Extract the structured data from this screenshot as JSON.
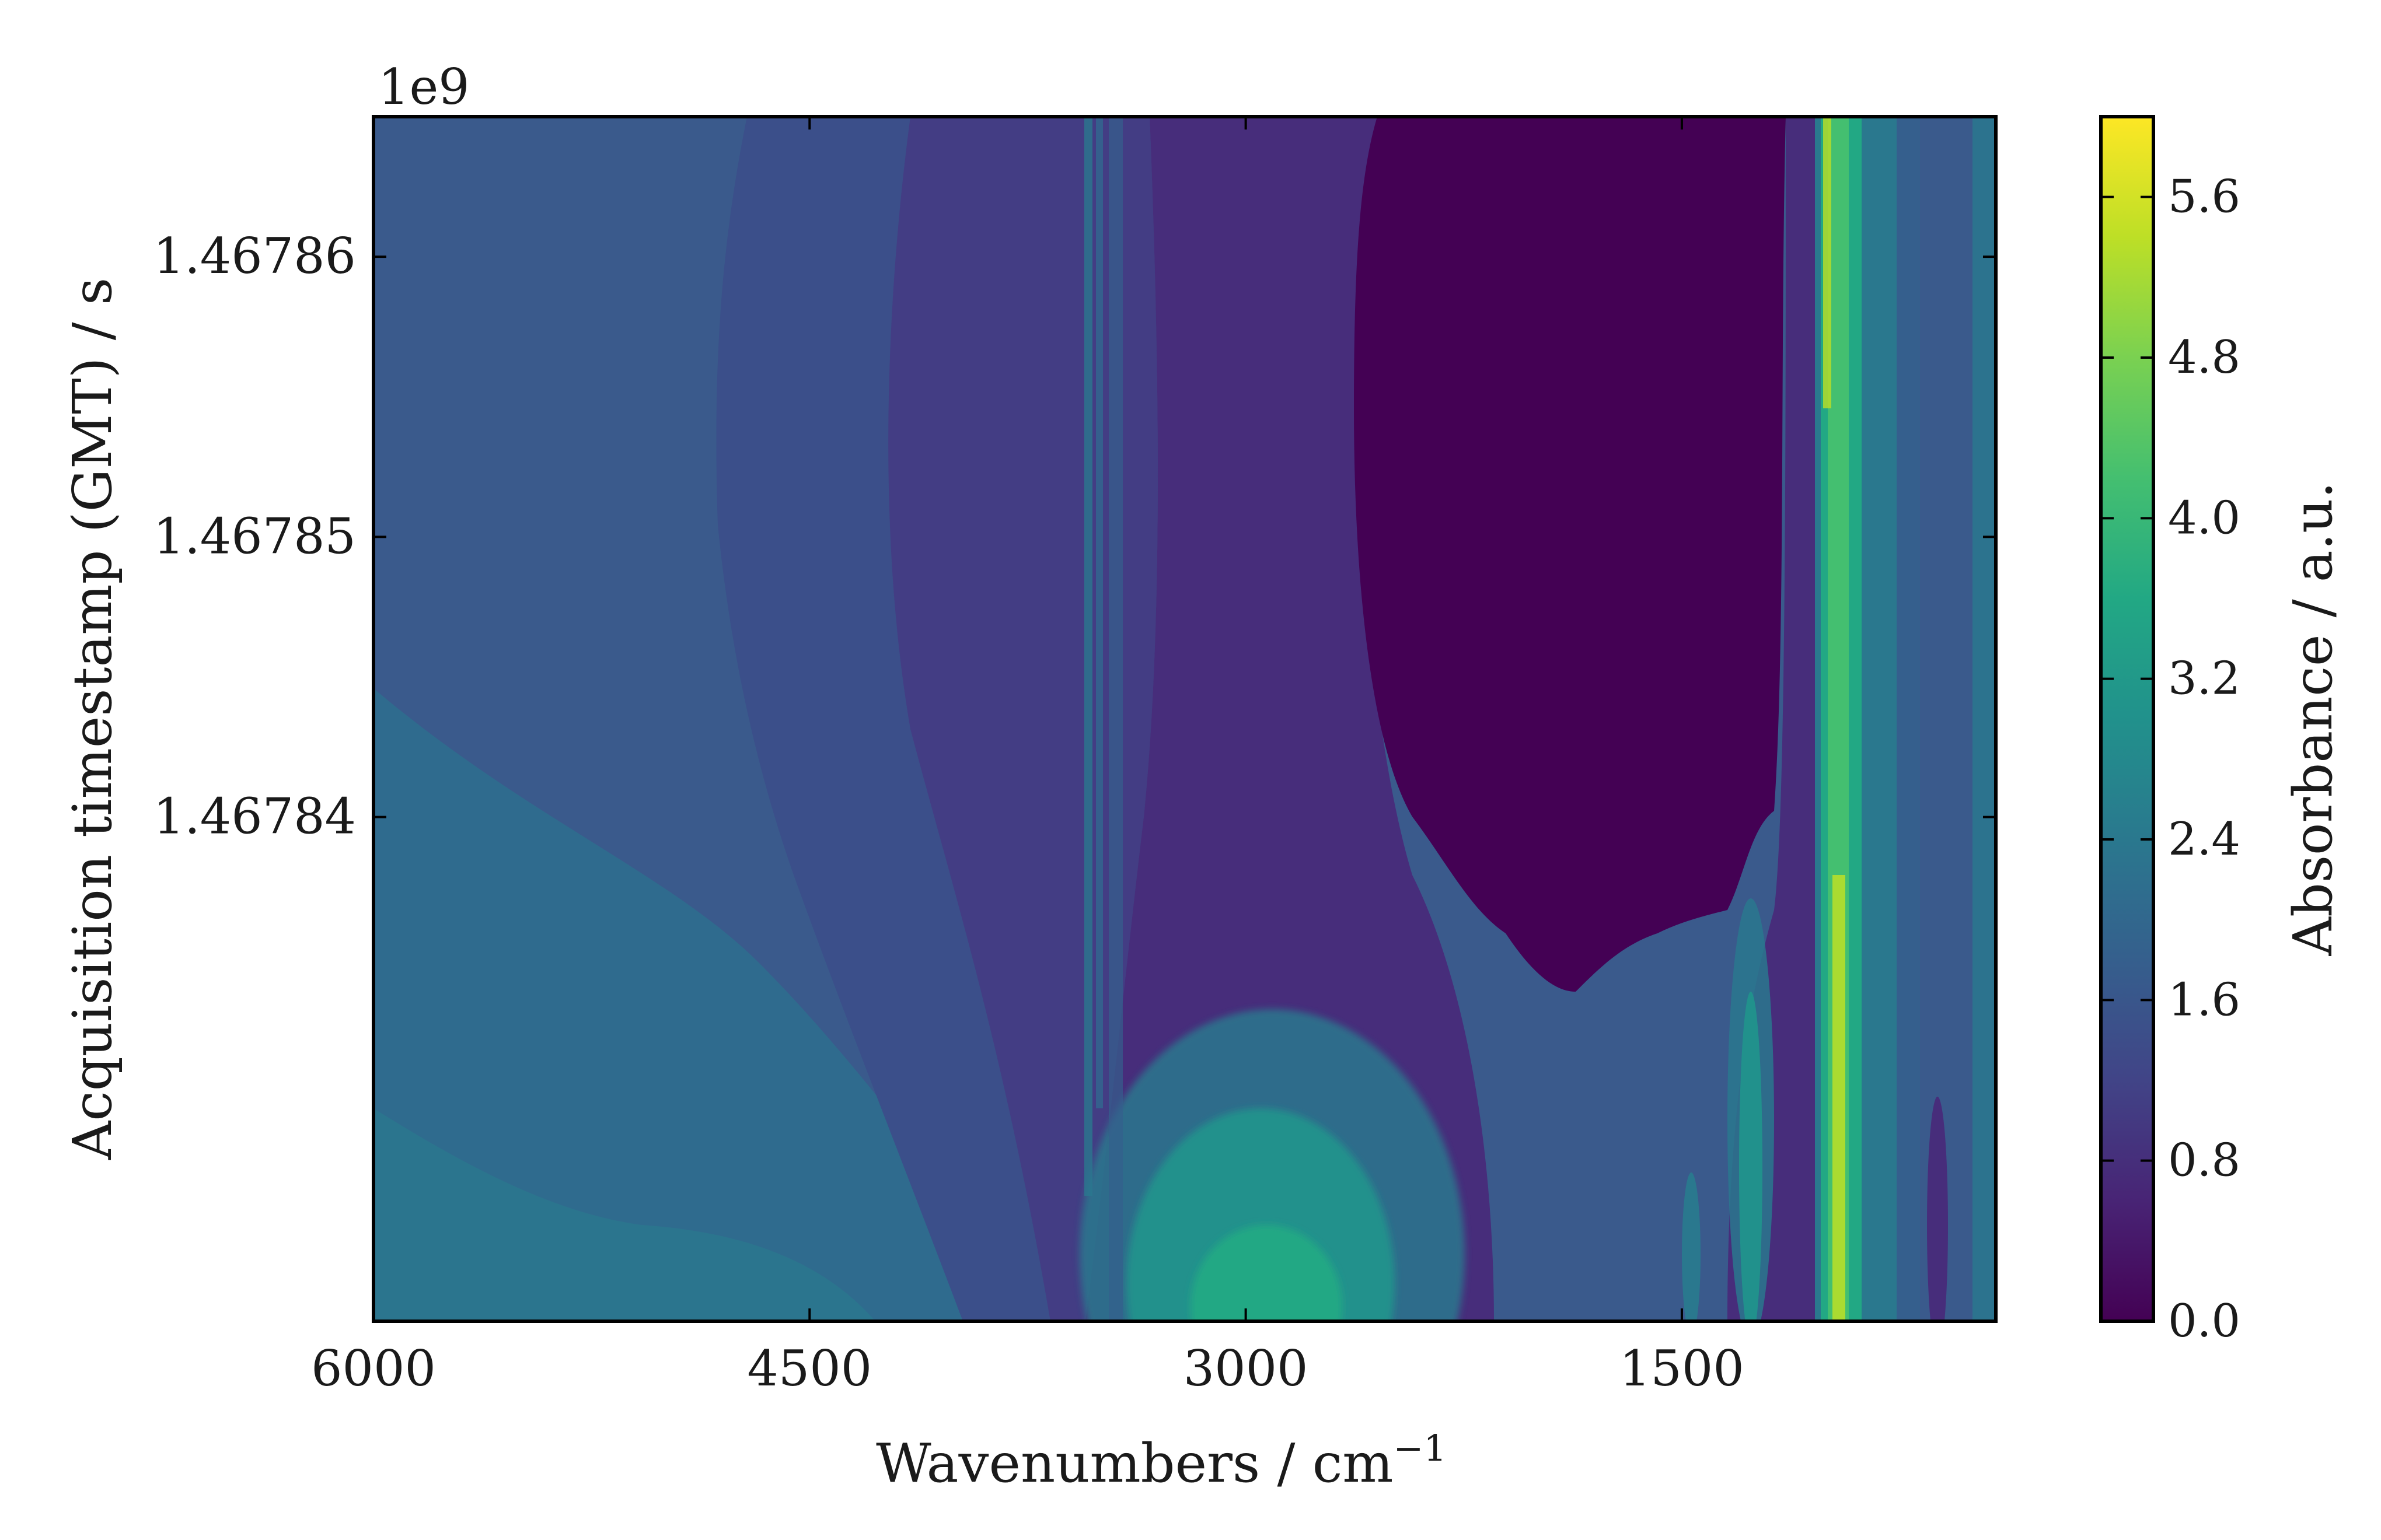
{
  "chart_data": {
    "type": "heatmap",
    "title": "",
    "xlabel": "Wavenumbers / cm",
    "xlabel_superscript": "−1",
    "ylabel": "Acquisition timestamp (GMT) / s",
    "y_offset_text": "1e9",
    "colorbar_label": "Absorbance / a.u.",
    "colormap": "viridis",
    "x_reversed": true,
    "xlim": [
      6000,
      420
    ],
    "ylim": [
      1.467822,
      1.467865
    ],
    "clim": [
      0.0,
      6.0
    ],
    "x_ticks": [
      {
        "value": 6000,
        "label": "6000"
      },
      {
        "value": 4500,
        "label": "4500"
      },
      {
        "value": 3000,
        "label": "3000"
      },
      {
        "value": 1500,
        "label": "1500"
      }
    ],
    "y_ticks": [
      {
        "value": 1.46786,
        "label": "1.46786"
      },
      {
        "value": 1.46785,
        "label": "1.46785"
      },
      {
        "value": 1.46784,
        "label": "1.46784"
      }
    ],
    "colorbar_ticks": [
      {
        "value": 0.0,
        "label": "0.0"
      },
      {
        "value": 0.8,
        "label": "0.8"
      },
      {
        "value": 1.6,
        "label": "1.6"
      },
      {
        "value": 2.4,
        "label": "2.4"
      },
      {
        "value": 3.2,
        "label": "3.2"
      },
      {
        "value": 4.0,
        "label": "4.0"
      },
      {
        "value": 4.8,
        "label": "4.8"
      },
      {
        "value": 5.6,
        "label": "5.6"
      }
    ],
    "grid": false
  }
}
